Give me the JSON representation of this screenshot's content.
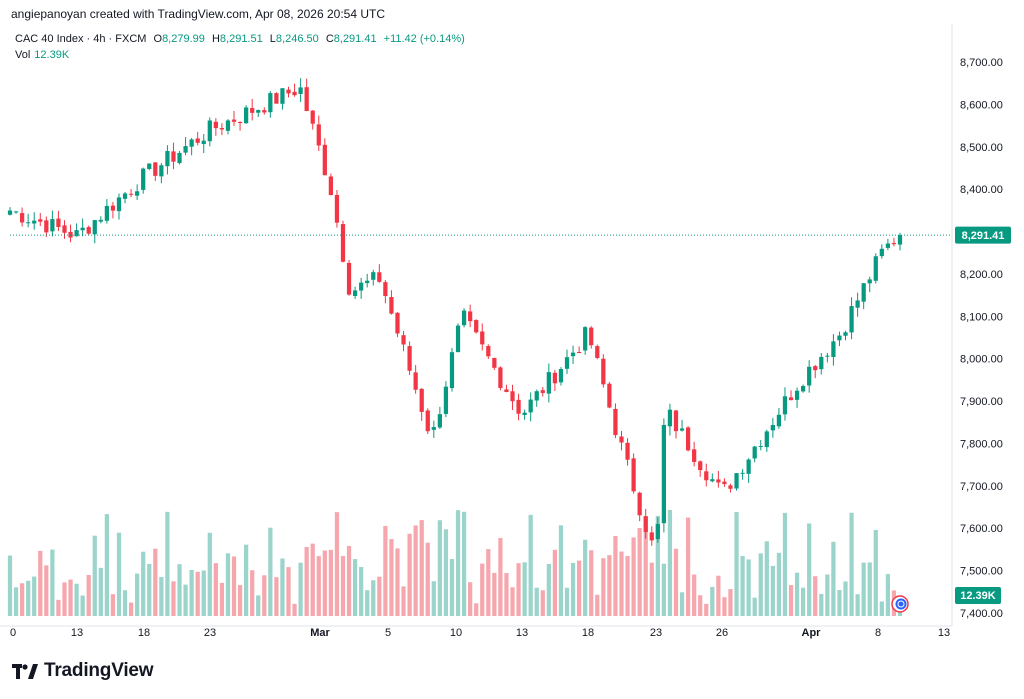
{
  "credit": "angiepanoyan created with TradingView.com, Apr 08, 2026 20:54 UTC",
  "legend": {
    "symbol": "CAC 40 Index · 4h · FXCM",
    "o_label": "O",
    "o_value": "8,279.99",
    "h_label": "H",
    "h_value": "8,291.51",
    "l_label": "L",
    "l_value": "8,246.50",
    "c_label": "C",
    "c_value": "8,291.41",
    "change": "+11.42 (+0.14%)",
    "vol_label": "Vol",
    "vol_value": "12.39K"
  },
  "brand": {
    "name": "TradingView",
    "logo_icon": "tradingview-logo-icon"
  },
  "colors": {
    "up": "#089981",
    "down": "#f23645",
    "up_vol": "#9bd4cb",
    "down_vol": "#f5a7ad",
    "accent": "#2962ff"
  },
  "chart_data": {
    "type": "candlestick",
    "price_axis": {
      "ylim": [
        7400,
        8750
      ],
      "ticks": [
        7400,
        7500,
        7600,
        7700,
        7800,
        7900,
        8000,
        8100,
        8200,
        8300,
        8400,
        8500,
        8600,
        8700
      ],
      "tick_labels": [
        "7,400.00",
        "7,500.00",
        "7,600.00",
        "7,700.00",
        "7,800.00",
        "7,900.00",
        "8,000.00",
        "8,100.00",
        "8,200.00",
        "8,300.00",
        "8,400.00",
        "8,500.00",
        "8,600.00",
        "8,700.00"
      ]
    },
    "time_axis": {
      "labels": [
        "0",
        "13",
        "18",
        "23",
        "Mar",
        "5",
        "10",
        "13",
        "18",
        "23",
        "26",
        "Apr",
        "8",
        "13"
      ],
      "bold": [
        false,
        false,
        false,
        false,
        true,
        false,
        false,
        false,
        false,
        false,
        false,
        true,
        false,
        false
      ]
    },
    "last_price": 8291.41,
    "last_price_label": "8,291.41",
    "last_volume_label": "12.39K",
    "grid": false,
    "key_points": [
      {
        "date": "Feb 9",
        "close": 8350
      },
      {
        "date": "Feb 13",
        "close": 8290
      },
      {
        "date": "Feb 18",
        "close": 8430
      },
      {
        "date": "Feb 23",
        "close": 8540
      },
      {
        "date": "Feb 27",
        "close": 8640
      },
      {
        "date": "Mar 2",
        "close": 8410
      },
      {
        "date": "Mar 4",
        "close": 8160
      },
      {
        "date": "Mar 6",
        "close": 8190
      },
      {
        "date": "Mar 9",
        "close": 7810
      },
      {
        "date": "Mar 10",
        "close": 8100
      },
      {
        "date": "Mar 13",
        "close": 7870
      },
      {
        "date": "Mar 17",
        "close": 8060
      },
      {
        "date": "Mar 20",
        "close": 7800
      },
      {
        "date": "Mar 23",
        "close": 7530
      },
      {
        "date": "Mar 24",
        "close": 7880
      },
      {
        "date": "Mar 27",
        "close": 7680
      },
      {
        "date": "Mar 31",
        "close": 7950
      },
      {
        "date": "Apr 2",
        "close": 8060
      },
      {
        "date": "Apr 7",
        "close": 8250
      },
      {
        "date": "Apr 8",
        "close": 8291.41
      }
    ]
  }
}
